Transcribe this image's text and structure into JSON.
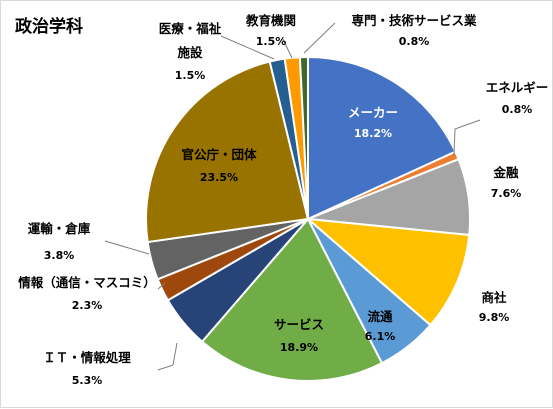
{
  "chart_data": {
    "type": "pie",
    "title": "政治学科",
    "slices": [
      {
        "name": "メーカー",
        "value": 18.2,
        "label": "18.2%",
        "color": "#4472C4"
      },
      {
        "name": "エネルギー",
        "value": 0.8,
        "label": "0.8%",
        "color": "#ED7D31"
      },
      {
        "name": "金融",
        "value": 7.6,
        "label": "7.6%",
        "color": "#A5A5A5"
      },
      {
        "name": "商社",
        "value": 9.8,
        "label": "9.8%",
        "color": "#FFC000"
      },
      {
        "name": "流通",
        "value": 6.1,
        "label": "6.1%",
        "color": "#5B9BD5"
      },
      {
        "name": "サービス",
        "value": 18.9,
        "label": "18.9%",
        "color": "#70AD47"
      },
      {
        "name": "ＩＴ・情報処理",
        "value": 5.3,
        "label": "5.3%",
        "color": "#264478"
      },
      {
        "name": "情報（通信・マスコミ）",
        "value": 2.3,
        "label": "2.3%",
        "color": "#9E480E"
      },
      {
        "name": "運輸・倉庫",
        "value": 3.8,
        "label": "3.8%",
        "color": "#636363"
      },
      {
        "name": "官公庁・団体",
        "value": 23.5,
        "label": "23.5%",
        "color": "#997300"
      },
      {
        "name": "医療・福祉施設",
        "value": 1.5,
        "label": "1.5%",
        "color": "#255E91"
      },
      {
        "name": "教育機関",
        "value": 1.5,
        "label": "1.5%",
        "color": "#FF9900"
      },
      {
        "name": "専門・技術サービス業",
        "value": 0.8,
        "label": "0.8%",
        "color": "#43682B"
      }
    ]
  }
}
